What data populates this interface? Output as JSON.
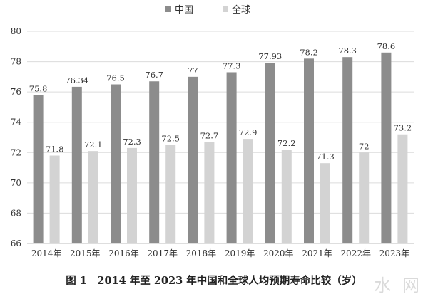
{
  "chart_data": {
    "type": "bar",
    "categories": [
      "2014年",
      "2015年",
      "2016年",
      "2017年",
      "2018年",
      "2019年",
      "2020年",
      "2021年",
      "2022年",
      "2023年"
    ],
    "series": [
      {
        "name": "中国",
        "values": [
          75.8,
          76.34,
          76.5,
          76.7,
          77,
          77.3,
          77.93,
          78.2,
          78.3,
          78.6
        ],
        "labels": [
          "75.8",
          "76.34",
          "76.5",
          "76.7",
          "77",
          "77.3",
          "77.93",
          "78.2",
          "78.3",
          "78.6"
        ]
      },
      {
        "name": "全球",
        "values": [
          71.8,
          72.1,
          72.3,
          72.5,
          72.7,
          72.9,
          72.2,
          71.3,
          72,
          73.2
        ],
        "labels": [
          "71.8",
          "72.1",
          "72.3",
          "72.5",
          "72.7",
          "72.9",
          "72.2",
          "71.3",
          "72",
          "73.2"
        ]
      }
    ],
    "ylim": [
      66,
      80
    ],
    "yticks": [
      66,
      68,
      70,
      72,
      74,
      76,
      78,
      80
    ],
    "grid": true,
    "legend": "top-center",
    "colors": {
      "中国": "#8c8c8c",
      "全球": "#d3d3d3"
    },
    "title": "图 1　2014 年至 2023 年中国和全球人均预期寿命比较（岁）"
  },
  "watermark": "水 网"
}
